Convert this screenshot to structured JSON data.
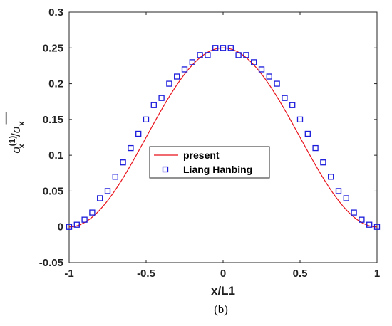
{
  "chart_data": {
    "type": "line",
    "title": "",
    "xlabel": "x/L1",
    "ylabel": {
      "main": "σ",
      "sub": "x",
      "sup": "(1)",
      "slash": "/",
      "denom_main": "σ",
      "denom_sub": "x",
      "denom_bar": "—"
    },
    "xlim": [
      -1,
      1
    ],
    "ylim": [
      -0.05,
      0.3
    ],
    "xticks": [
      "-1",
      "-0.5",
      "0",
      "0.5",
      "1"
    ],
    "yticks": [
      "-0.05",
      "0",
      "0.05",
      "0.1",
      "0.15",
      "0.2",
      "0.25",
      "0.3"
    ],
    "grid": false,
    "legend_position": "center",
    "series": [
      {
        "name": "present",
        "style": "line",
        "color": "#e8121b",
        "x": [
          -1,
          -0.95,
          -0.9,
          -0.85,
          -0.8,
          -0.75,
          -0.7,
          -0.65,
          -0.6,
          -0.55,
          -0.5,
          -0.45,
          -0.4,
          -0.35,
          -0.3,
          -0.25,
          -0.2,
          -0.15,
          -0.1,
          -0.05,
          0,
          0.05,
          0.1,
          0.15,
          0.2,
          0.25,
          0.3,
          0.35,
          0.4,
          0.45,
          0.5,
          0.55,
          0.6,
          0.65,
          0.7,
          0.75,
          0.8,
          0.85,
          0.9,
          0.95,
          1
        ],
        "y": [
          0,
          0.0015,
          0.0061,
          0.0136,
          0.0239,
          0.0366,
          0.0513,
          0.0677,
          0.0851,
          0.1032,
          0.125,
          0.1397,
          0.1573,
          0.1737,
          0.1884,
          0.2011,
          0.2114,
          0.2189,
          0.2235,
          0.225,
          0.25,
          0.225,
          0.2235,
          0.2189,
          0.2114,
          0.2011,
          0.1884,
          0.1737,
          0.1573,
          0.1397,
          0.125,
          0.1032,
          0.0851,
          0.0677,
          0.0513,
          0.0366,
          0.0239,
          0.0136,
          0.0061,
          0.0015,
          0
        ]
      },
      {
        "name": "Liang Hanbing",
        "style": "markers",
        "marker": "square",
        "color": "#1a1adb",
        "x": [
          -1,
          -0.95,
          -0.9,
          -0.85,
          -0.8,
          -0.75,
          -0.7,
          -0.65,
          -0.6,
          -0.55,
          -0.5,
          -0.45,
          -0.4,
          -0.35,
          -0.3,
          -0.25,
          -0.2,
          -0.15,
          -0.1,
          -0.05,
          0,
          0.05,
          0.1,
          0.15,
          0.2,
          0.25,
          0.3,
          0.35,
          0.4,
          0.45,
          0.5,
          0.55,
          0.6,
          0.65,
          0.7,
          0.75,
          0.8,
          0.85,
          0.9,
          0.95,
          1
        ],
        "y": [
          0,
          0.003,
          0.01,
          0.02,
          0.04,
          0.05,
          0.07,
          0.09,
          0.11,
          0.13,
          0.15,
          0.17,
          0.18,
          0.2,
          0.21,
          0.22,
          0.23,
          0.24,
          0.24,
          0.25,
          0.25,
          0.25,
          0.24,
          0.24,
          0.23,
          0.22,
          0.21,
          0.2,
          0.18,
          0.17,
          0.15,
          0.13,
          0.11,
          0.09,
          0.07,
          0.05,
          0.04,
          0.02,
          0.01,
          0.003,
          0
        ]
      }
    ]
  },
  "caption": "(b)"
}
